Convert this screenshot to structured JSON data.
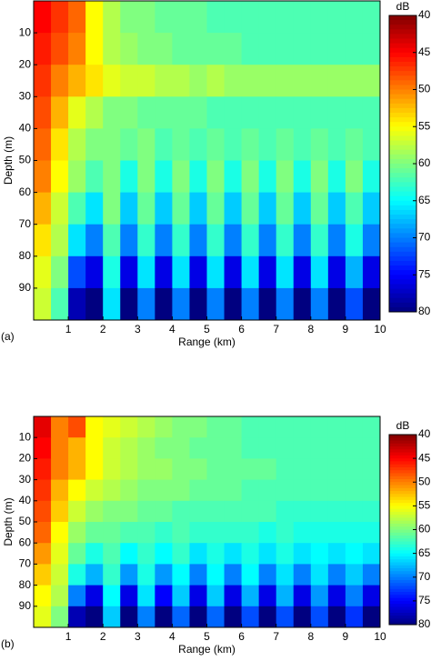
{
  "chart_data": [
    {
      "type": "heatmap",
      "panel_label": "(a)",
      "xlabel": "Range (km)",
      "ylabel": "Depth (m)",
      "colorbar_label": "dB",
      "x": [
        0.25,
        0.75,
        1.25,
        1.75,
        2.25,
        2.75,
        3.25,
        3.75,
        4.25,
        4.75,
        5.25,
        5.75,
        6.25,
        6.75,
        7.25,
        7.75,
        8.25,
        8.75,
        9.25,
        9.75
      ],
      "y": [
        5,
        15,
        25,
        35,
        45,
        55,
        65,
        75,
        85,
        95
      ],
      "z": [
        [
          45,
          47,
          49,
          55,
          58,
          60,
          60,
          61,
          61,
          61,
          62,
          62,
          62,
          62,
          62,
          62,
          62,
          62,
          62,
          62
        ],
        [
          46,
          48,
          50,
          55,
          58,
          59,
          60,
          60,
          61,
          61,
          61,
          61,
          62,
          62,
          62,
          62,
          62,
          62,
          62,
          62
        ],
        [
          47,
          50,
          52,
          54,
          56,
          57,
          57,
          58,
          58,
          59,
          58,
          59,
          59,
          59,
          59,
          59,
          59,
          59,
          59,
          59
        ],
        [
          48,
          52,
          56,
          58,
          60,
          60,
          61,
          61,
          61,
          61,
          62,
          62,
          62,
          62,
          62,
          62,
          62,
          62,
          62,
          62
        ],
        [
          49,
          54,
          58,
          60,
          60,
          61,
          60,
          62,
          61,
          62,
          61,
          62,
          61,
          62,
          61,
          62,
          61,
          62,
          61,
          62
        ],
        [
          50,
          55,
          59,
          62,
          60,
          64,
          60,
          64,
          60,
          64,
          60,
          64,
          60,
          64,
          60,
          64,
          60,
          64,
          60,
          64
        ],
        [
          52,
          57,
          62,
          66,
          60,
          67,
          61,
          67,
          61,
          67,
          61,
          67,
          61,
          67,
          61,
          67,
          61,
          67,
          62,
          67
        ],
        [
          54,
          58,
          66,
          70,
          62,
          70,
          63,
          70,
          63,
          70,
          63,
          70,
          63,
          70,
          63,
          70,
          63,
          70,
          64,
          70
        ],
        [
          56,
          60,
          72,
          76,
          64,
          76,
          66,
          76,
          66,
          76,
          66,
          76,
          66,
          76,
          66,
          76,
          66,
          76,
          68,
          76
        ],
        [
          57,
          62,
          78,
          80,
          66,
          80,
          70,
          80,
          70,
          80,
          70,
          80,
          70,
          80,
          70,
          80,
          70,
          80,
          72,
          80
        ]
      ],
      "xlim": [
        0,
        10
      ],
      "xticks": [
        1,
        2,
        3,
        4,
        5,
        6,
        7,
        8,
        9,
        10
      ],
      "ylim": [
        0,
        100
      ],
      "yticks": [
        10,
        20,
        30,
        40,
        50,
        60,
        70,
        80,
        90
      ],
      "clim": [
        40,
        80
      ],
      "cticks": [
        40,
        45,
        50,
        55,
        60,
        65,
        70,
        75,
        80
      ],
      "colormap": "jet-reversed"
    },
    {
      "type": "heatmap",
      "panel_label": "(b)",
      "xlabel": "Range (km)",
      "ylabel": "Depth (m)",
      "colorbar_label": "dB",
      "x": [
        0.25,
        0.75,
        1.25,
        1.75,
        2.25,
        2.75,
        3.25,
        3.75,
        4.25,
        4.75,
        5.25,
        5.75,
        6.25,
        6.75,
        7.25,
        7.75,
        8.25,
        8.75,
        9.25,
        9.75
      ],
      "y": [
        5,
        15,
        25,
        35,
        45,
        55,
        65,
        75,
        85,
        95
      ],
      "z": [
        [
          44,
          50,
          48,
          55,
          56,
          57,
          58,
          59,
          60,
          60,
          61,
          61,
          62,
          62,
          62,
          62,
          62,
          62,
          62,
          62
        ],
        [
          45,
          50,
          52,
          55,
          57,
          58,
          59,
          60,
          60,
          61,
          61,
          61,
          62,
          62,
          62,
          62,
          62,
          62,
          62,
          62
        ],
        [
          46,
          50,
          52,
          55,
          57,
          58,
          59,
          59,
          60,
          60,
          61,
          61,
          61,
          61,
          62,
          62,
          62,
          62,
          62,
          62
        ],
        [
          47,
          52,
          55,
          57,
          58,
          59,
          60,
          60,
          60,
          61,
          61,
          61,
          62,
          62,
          62,
          62,
          62,
          62,
          62,
          62
        ],
        [
          48,
          53,
          57,
          59,
          60,
          60,
          61,
          61,
          62,
          62,
          62,
          62,
          62,
          62,
          63,
          63,
          63,
          63,
          63,
          63
        ],
        [
          49,
          55,
          59,
          61,
          61,
          62,
          62,
          63,
          62,
          63,
          63,
          63,
          63,
          64,
          63,
          64,
          64,
          64,
          64,
          64
        ],
        [
          51,
          56,
          61,
          64,
          62,
          65,
          63,
          65,
          63,
          66,
          64,
          66,
          64,
          66,
          64,
          66,
          65,
          66,
          65,
          66
        ],
        [
          53,
          57,
          64,
          68,
          63,
          69,
          64,
          69,
          65,
          70,
          65,
          70,
          65,
          70,
          66,
          70,
          66,
          70,
          67,
          70
        ],
        [
          55,
          58,
          70,
          76,
          65,
          76,
          66,
          75,
          67,
          76,
          67,
          76,
          68,
          76,
          68,
          76,
          69,
          76,
          70,
          76
        ],
        [
          56,
          60,
          78,
          80,
          67,
          80,
          70,
          80,
          71,
          80,
          71,
          80,
          72,
          80,
          72,
          80,
          72,
          80,
          73,
          80
        ]
      ],
      "xlim": [
        0,
        10
      ],
      "xticks": [
        1,
        2,
        3,
        4,
        5,
        6,
        7,
        8,
        9,
        10
      ],
      "ylim": [
        0,
        100
      ],
      "yticks": [
        10,
        20,
        30,
        40,
        50,
        60,
        70,
        80,
        90
      ],
      "clim": [
        40,
        80
      ],
      "cticks": [
        40,
        45,
        50,
        55,
        60,
        65,
        70,
        75,
        80
      ],
      "colormap": "jet-reversed"
    }
  ]
}
